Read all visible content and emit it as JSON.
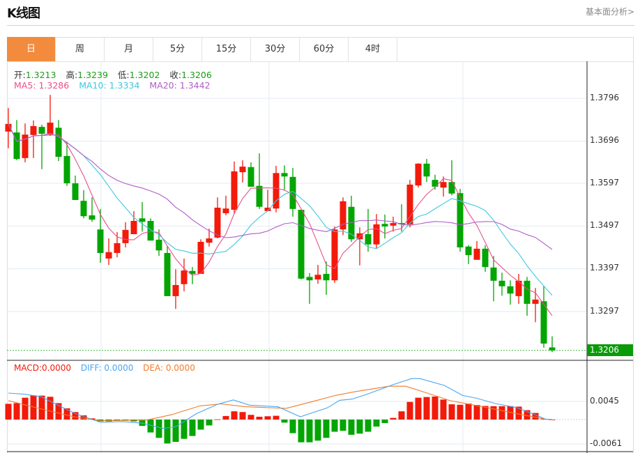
{
  "header": {
    "title": "K线图",
    "fundamental_link": "基本面分析>"
  },
  "tabs": [
    {
      "label": "日",
      "active": true
    },
    {
      "label": "周"
    },
    {
      "label": "月"
    },
    {
      "label": "5分"
    },
    {
      "label": "15分"
    },
    {
      "label": "30分"
    },
    {
      "label": "60分"
    },
    {
      "label": "4时"
    }
  ],
  "ohlc_info": {
    "open_label": "开:",
    "open": "1.3213",
    "high_label": "高:",
    "high": "1.3239",
    "low_label": "低:",
    "low": "1.3202",
    "close_label": "收:",
    "close": "1.3206"
  },
  "ma_info": {
    "ma5": "MA5: 1.3286",
    "ma10": "MA10: 1.3334",
    "ma20": "MA20: 1.3442"
  },
  "macd_info": {
    "macd": "MACD:0.0000",
    "diff": "DIFF: 0.0000",
    "dea": "DEA: 0.0000"
  },
  "colors": {
    "up": "#f21a0a",
    "down": "#03a503",
    "ma5": "#ea4f8a",
    "ma10": "#3ec8de",
    "ma20": "#b05cc8",
    "diff": "#4ba5ee",
    "dea": "#f27a2a",
    "accent": "#f28b3e"
  },
  "chart_data": {
    "type": "candlestick",
    "price_axis": {
      "ticks": [
        "1.3796",
        "1.3696",
        "1.3597",
        "1.3497",
        "1.3397",
        "1.3297"
      ],
      "ylim": [
        1.318,
        1.388
      ],
      "current_price": "1.3206"
    },
    "macd_axis": {
      "ticks": [
        "0.0045",
        "-0.0061"
      ],
      "ylim": [
        -0.0085,
        0.015
      ]
    },
    "candles": [
      [
        1.3718,
        1.3773,
        1.3679,
        1.3736
      ],
      [
        1.3716,
        1.3745,
        1.3651,
        1.3654
      ],
      [
        1.3656,
        1.3737,
        1.3646,
        1.3711
      ],
      [
        1.371,
        1.3744,
        1.3656,
        1.3731
      ],
      [
        1.3729,
        1.3734,
        1.363,
        1.3713
      ],
      [
        1.3711,
        1.3804,
        1.3708,
        1.3739
      ],
      [
        1.3727,
        1.3745,
        1.3649,
        1.3659
      ],
      [
        1.3661,
        1.3695,
        1.3591,
        1.3597
      ],
      [
        1.3597,
        1.3615,
        1.3558,
        1.3558
      ],
      [
        1.3556,
        1.3581,
        1.3515,
        1.352
      ],
      [
        1.3522,
        1.3564,
        1.3507,
        1.3512
      ],
      [
        1.3489,
        1.3537,
        1.3411,
        1.3434
      ],
      [
        1.3421,
        1.3468,
        1.3406,
        1.3436
      ],
      [
        1.3434,
        1.3483,
        1.3424,
        1.3457
      ],
      [
        1.3457,
        1.3506,
        1.3447,
        1.3488
      ],
      [
        1.3478,
        1.3532,
        1.3478,
        1.3509
      ],
      [
        1.3515,
        1.3553,
        1.3484,
        1.3507
      ],
      [
        1.3509,
        1.3515,
        1.3463,
        1.3463
      ],
      [
        1.3465,
        1.3489,
        1.3427,
        1.344
      ],
      [
        1.3434,
        1.345,
        1.3333,
        1.3333
      ],
      [
        1.3333,
        1.3396,
        1.3303,
        1.3359
      ],
      [
        1.3361,
        1.3421,
        1.3344,
        1.3393
      ],
      [
        1.3392,
        1.3401,
        1.3361,
        1.3385
      ],
      [
        1.3385,
        1.3466,
        1.3385,
        1.346
      ],
      [
        1.3458,
        1.3491,
        1.3449,
        1.3468
      ],
      [
        1.347,
        1.3564,
        1.3468,
        1.354
      ],
      [
        1.3527,
        1.3568,
        1.3522,
        1.3538
      ],
      [
        1.3535,
        1.3648,
        1.3525,
        1.3625
      ],
      [
        1.3623,
        1.3651,
        1.3599,
        1.3636
      ],
      [
        1.3635,
        1.3646,
        1.3589,
        1.3589
      ],
      [
        1.3591,
        1.3667,
        1.3537,
        1.3542
      ],
      [
        1.3532,
        1.3582,
        1.3532,
        1.354
      ],
      [
        1.3538,
        1.3638,
        1.3529,
        1.3621
      ],
      [
        1.3621,
        1.3639,
        1.3581,
        1.3613
      ],
      [
        1.3612,
        1.3633,
        1.3519,
        1.3537
      ],
      [
        1.3535,
        1.3535,
        1.3372,
        1.3374
      ],
      [
        1.3378,
        1.3387,
        1.3315,
        1.337
      ],
      [
        1.3372,
        1.3406,
        1.3362,
        1.3383
      ],
      [
        1.3385,
        1.3414,
        1.3336,
        1.337
      ],
      [
        1.337,
        1.3496,
        1.3364,
        1.3489
      ],
      [
        1.3489,
        1.3564,
        1.3476,
        1.3555
      ],
      [
        1.3542,
        1.3568,
        1.346,
        1.3466
      ],
      [
        1.3466,
        1.3494,
        1.3405,
        1.348
      ],
      [
        1.3478,
        1.3537,
        1.3437,
        1.3454
      ],
      [
        1.3454,
        1.3525,
        1.3444,
        1.3501
      ],
      [
        1.3502,
        1.3524,
        1.3468,
        1.3496
      ],
      [
        1.3498,
        1.3519,
        1.3484,
        1.3504
      ],
      [
        1.3504,
        1.3548,
        1.3484,
        1.3501
      ],
      [
        1.3501,
        1.3605,
        1.3494,
        1.3594
      ],
      [
        1.3592,
        1.3644,
        1.3587,
        1.3643
      ],
      [
        1.3643,
        1.3654,
        1.36,
        1.3613
      ],
      [
        1.3605,
        1.3617,
        1.3582,
        1.3589
      ],
      [
        1.3587,
        1.3613,
        1.3566,
        1.36
      ],
      [
        1.36,
        1.3651,
        1.3569,
        1.3573
      ],
      [
        1.3574,
        1.3584,
        1.3437,
        1.3447
      ],
      [
        1.3449,
        1.3452,
        1.3408,
        1.3429
      ],
      [
        1.3418,
        1.3462,
        1.3418,
        1.3444
      ],
      [
        1.3444,
        1.3452,
        1.339,
        1.3401
      ],
      [
        1.34,
        1.3427,
        1.3321,
        1.3369
      ],
      [
        1.3369,
        1.3388,
        1.3334,
        1.3356
      ],
      [
        1.3356,
        1.337,
        1.3313,
        1.3339
      ],
      [
        1.3333,
        1.3385,
        1.3315,
        1.3369
      ],
      [
        1.3369,
        1.3378,
        1.3287,
        1.3315
      ],
      [
        1.3315,
        1.3352,
        1.3272,
        1.3325
      ],
      [
        1.3321,
        1.3356,
        1.3212,
        1.3222
      ],
      [
        1.3213,
        1.3239,
        1.3202,
        1.3206
      ]
    ],
    "macd_hist": [
      0.00392,
      0.00409,
      0.00544,
      0.00602,
      0.00596,
      0.00567,
      0.00409,
      0.00281,
      0.00187,
      0.00105,
      0.00029,
      -0.00047,
      -0.00047,
      -0.00029,
      -0.00029,
      -0.00047,
      -0.00158,
      -0.00322,
      -0.00456,
      -0.00596,
      -0.00556,
      -0.0048,
      -0.00409,
      -0.00251,
      -0.00146,
      5e-05,
      0.00088,
      0.00205,
      0.00187,
      0.00117,
      0.0007,
      0.00082,
      0.00094,
      -0.00076,
      -0.00339,
      -0.00567,
      -0.00567,
      -0.00526,
      -0.00456,
      -0.00304,
      -0.00281,
      -0.0038,
      -0.00351,
      -0.00304,
      -0.00175,
      -0.00088,
      0.00041,
      0.00205,
      0.00439,
      0.00544,
      0.00561,
      0.00573,
      0.00497,
      0.0038,
      0.00368,
      0.00398,
      0.00363,
      0.00339,
      0.00333,
      0.00333,
      0.00333,
      0.00322,
      0.00234,
      0.00164,
      0.00012,
      0.0
    ],
    "diff": [
      [
        0,
        0.0066
      ],
      [
        2,
        0.0063
      ],
      [
        4,
        0.0056
      ],
      [
        6,
        0.0035
      ],
      [
        8,
        0.0015
      ],
      [
        11,
        -0.0007
      ],
      [
        13.6,
        -0.0005
      ],
      [
        16,
        -0.0009
      ],
      [
        18.5,
        -0.0022
      ],
      [
        20,
        -0.0018
      ],
      [
        22.5,
        0.0015
      ],
      [
        25,
        0.0038
      ],
      [
        26.9,
        0.0049
      ],
      [
        28.8,
        0.0036
      ],
      [
        32.2,
        0.0032
      ],
      [
        34.9,
        0.0007
      ],
      [
        38.1,
        0.0029
      ],
      [
        39.6,
        0.0048
      ],
      [
        41.1,
        0.0051
      ],
      [
        43,
        0.0064
      ],
      [
        46,
        0.0087
      ],
      [
        48.2,
        0.0102
      ],
      [
        49.2,
        0.0102
      ],
      [
        52.1,
        0.0085
      ],
      [
        54.3,
        0.006
      ],
      [
        56,
        0.0053
      ],
      [
        58.2,
        0.004
      ],
      [
        60.7,
        0.003
      ],
      [
        62.6,
        0.0015
      ],
      [
        64.2,
        0.0001
      ],
      [
        65,
        0.0
      ]
    ],
    "dea": [
      [
        0,
        0.0047
      ],
      [
        4,
        0.0026
      ],
      [
        8,
        0.0006
      ],
      [
        11,
        -0.0003
      ],
      [
        16.6,
        -0.0001
      ],
      [
        19.5,
        0.0012
      ],
      [
        22.9,
        0.0034
      ],
      [
        25.4,
        0.0039
      ],
      [
        28.3,
        0.0032
      ],
      [
        33.2,
        0.0028
      ],
      [
        36.2,
        0.0044
      ],
      [
        39.1,
        0.006
      ],
      [
        41.6,
        0.007
      ],
      [
        45.5,
        0.0083
      ],
      [
        47.5,
        0.0083
      ],
      [
        49.9,
        0.0067
      ],
      [
        52.8,
        0.0047
      ],
      [
        56.7,
        0.0032
      ],
      [
        60.7,
        0.0015
      ],
      [
        64.2,
        0.0001
      ],
      [
        65,
        0.0
      ]
    ],
    "ma_periods": [
      5,
      10,
      20
    ]
  }
}
